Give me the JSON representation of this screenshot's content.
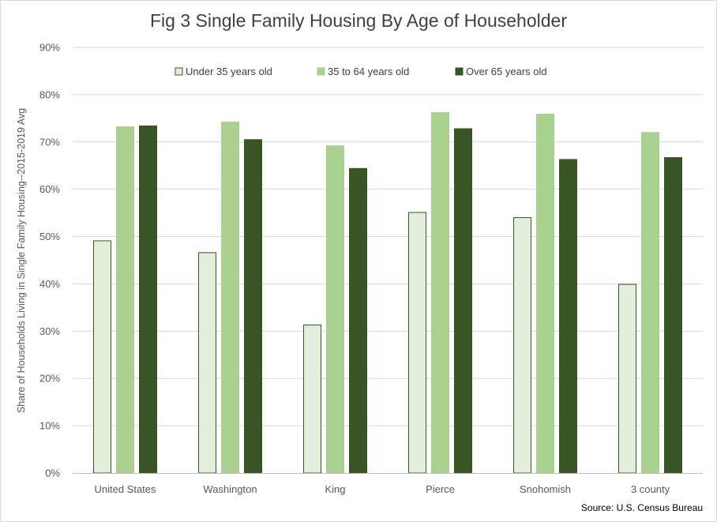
{
  "chart_data": {
    "type": "bar",
    "title": "Fig 3 Single Family Housing By Age of Householder",
    "ylabel": "Share of Households Living in Single Family Housing--2015-2019 Avg",
    "xlabel": "",
    "source": "Source: U.S. Census Bureau",
    "categories": [
      "United States",
      "Washington",
      "King",
      "Pierce",
      "Snohomish",
      "3 county"
    ],
    "series": [
      {
        "name": "Under 35 years old",
        "color": "#e2efda",
        "stroke": "#385723",
        "values": [
          49.1,
          46.6,
          31.3,
          55.1,
          54.0,
          39.9
        ]
      },
      {
        "name": "35 to 64 years old",
        "color": "#a9d08e",
        "stroke": "#a9d08e",
        "values": [
          73.2,
          74.2,
          69.2,
          76.2,
          75.9,
          72.0
        ]
      },
      {
        "name": "Over 65 years old",
        "color": "#375623",
        "stroke": "#375623",
        "values": [
          73.4,
          70.5,
          64.4,
          72.8,
          66.3,
          66.7
        ]
      }
    ],
    "ylim": [
      0,
      90
    ],
    "yticks": [
      0,
      10,
      20,
      30,
      40,
      50,
      60,
      70,
      80,
      90
    ],
    "ytick_labels": [
      "0%",
      "10%",
      "20%",
      "30%",
      "40%",
      "50%",
      "60%",
      "70%",
      "80%",
      "90%"
    ],
    "grid": true,
    "legend_position": "top"
  }
}
